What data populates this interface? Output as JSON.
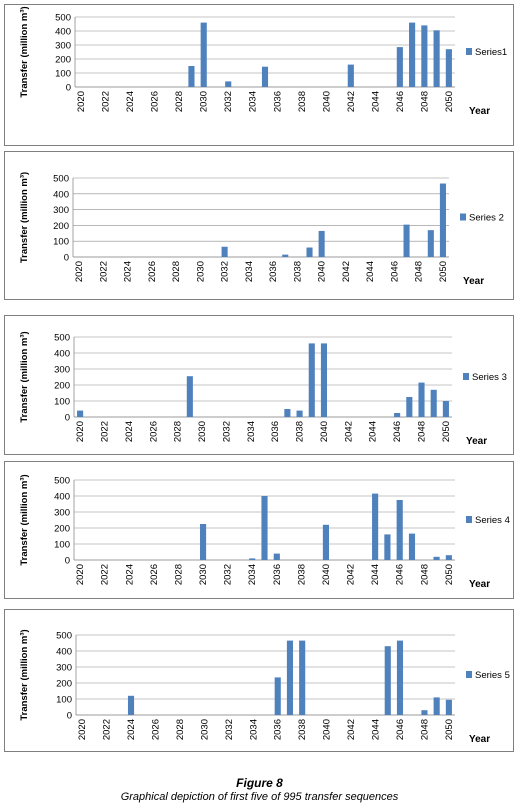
{
  "chart_data": [
    {
      "type": "bar",
      "ylabel": "Transfer (million m³)",
      "xlabel": "Year",
      "ylim": [
        0,
        500
      ],
      "yticks": [
        "0",
        "100",
        "200",
        "300",
        "400",
        "500"
      ],
      "tick_labels": [
        "2020",
        "2022",
        "2024",
        "2026",
        "2028",
        "2030",
        "2032",
        "2034",
        "2036",
        "2038",
        "2040",
        "2042",
        "2044",
        "2046",
        "2048",
        "2050"
      ],
      "legend_position": "right",
      "x": [
        2020,
        2021,
        2022,
        2023,
        2024,
        2025,
        2026,
        2027,
        2028,
        2029,
        2030,
        2031,
        2032,
        2033,
        2034,
        2035,
        2036,
        2037,
        2038,
        2039,
        2040,
        2041,
        2042,
        2043,
        2044,
        2045,
        2046,
        2047,
        2048,
        2049,
        2050
      ],
      "series": [
        {
          "name": "Series1",
          "values": [
            0,
            0,
            0,
            0,
            0,
            0,
            0,
            0,
            0,
            150,
            460,
            0,
            40,
            0,
            0,
            145,
            0,
            0,
            0,
            0,
            0,
            0,
            160,
            0,
            0,
            0,
            285,
            460,
            440,
            405,
            270
          ]
        }
      ],
      "color": "#4f81bd"
    },
    {
      "type": "bar",
      "ylabel": "Transfer (million m³)",
      "xlabel": "Year",
      "ylim": [
        0,
        500
      ],
      "yticks": [
        "0",
        "100",
        "200",
        "300",
        "400",
        "500"
      ],
      "tick_labels": [
        "2020",
        "2022",
        "2024",
        "2026",
        "2028",
        "2030",
        "2032",
        "2034",
        "2036",
        "2038",
        "2040",
        "2042",
        "2044",
        "2046",
        "2048",
        "2050"
      ],
      "legend_position": "right",
      "x": [
        2020,
        2021,
        2022,
        2023,
        2024,
        2025,
        2026,
        2027,
        2028,
        2029,
        2030,
        2031,
        2032,
        2033,
        2034,
        2035,
        2036,
        2037,
        2038,
        2039,
        2040,
        2041,
        2042,
        2043,
        2044,
        2045,
        2046,
        2047,
        2048,
        2049,
        2050
      ],
      "series": [
        {
          "name": "Series 2",
          "values": [
            0,
            0,
            0,
            0,
            0,
            0,
            0,
            0,
            0,
            0,
            0,
            0,
            65,
            0,
            0,
            0,
            0,
            15,
            0,
            60,
            165,
            0,
            0,
            0,
            0,
            0,
            0,
            205,
            0,
            170,
            465
          ]
        }
      ],
      "color": "#4f81bd"
    },
    {
      "type": "bar",
      "ylabel": "Transfer (million m³)",
      "xlabel": "Year",
      "ylim": [
        0,
        500
      ],
      "yticks": [
        "0",
        "100",
        "200",
        "300",
        "400",
        "500"
      ],
      "tick_labels": [
        "2020",
        "2022",
        "2024",
        "2026",
        "2028",
        "2030",
        "2032",
        "2034",
        "2036",
        "2038",
        "2040",
        "2042",
        "2044",
        "2046",
        "2048",
        "2050"
      ],
      "legend_position": "right",
      "x": [
        2020,
        2021,
        2022,
        2023,
        2024,
        2025,
        2026,
        2027,
        2028,
        2029,
        2030,
        2031,
        2032,
        2033,
        2034,
        2035,
        2036,
        2037,
        2038,
        2039,
        2040,
        2041,
        2042,
        2043,
        2044,
        2045,
        2046,
        2047,
        2048,
        2049,
        2050
      ],
      "series": [
        {
          "name": "Series 3",
          "values": [
            40,
            0,
            0,
            0,
            0,
            0,
            0,
            0,
            0,
            255,
            0,
            0,
            0,
            0,
            0,
            0,
            0,
            50,
            40,
            460,
            460,
            0,
            0,
            0,
            0,
            0,
            25,
            125,
            215,
            170,
            100
          ]
        }
      ],
      "color": "#4f81bd"
    },
    {
      "type": "bar",
      "ylabel": "Transfer (million m³)",
      "xlabel": "Year",
      "ylim": [
        0,
        500
      ],
      "yticks": [
        "0",
        "100",
        "200",
        "300",
        "400",
        "500"
      ],
      "tick_labels": [
        "2020",
        "2022",
        "2024",
        "2026",
        "2028",
        "2030",
        "2032",
        "2034",
        "2036",
        "2038",
        "2040",
        "2042",
        "2044",
        "2046",
        "2048",
        "2050"
      ],
      "legend_position": "right",
      "x": [
        2020,
        2021,
        2022,
        2023,
        2024,
        2025,
        2026,
        2027,
        2028,
        2029,
        2030,
        2031,
        2032,
        2033,
        2034,
        2035,
        2036,
        2037,
        2038,
        2039,
        2040,
        2041,
        2042,
        2043,
        2044,
        2045,
        2046,
        2047,
        2048,
        2049,
        2050
      ],
      "series": [
        {
          "name": "Series 4",
          "values": [
            0,
            0,
            0,
            0,
            0,
            0,
            0,
            0,
            0,
            0,
            225,
            0,
            0,
            0,
            10,
            400,
            40,
            0,
            0,
            0,
            220,
            0,
            0,
            0,
            415,
            160,
            375,
            165,
            0,
            20,
            30
          ]
        }
      ],
      "color": "#4f81bd"
    },
    {
      "type": "bar",
      "ylabel": "Transfer (million m³)",
      "xlabel": "Year",
      "ylim": [
        0,
        500
      ],
      "yticks": [
        "0",
        "100",
        "200",
        "300",
        "400",
        "500"
      ],
      "tick_labels": [
        "2020",
        "2022",
        "2024",
        "2026",
        "2028",
        "2030",
        "2032",
        "2034",
        "2036",
        "2038",
        "2040",
        "2042",
        "2044",
        "2046",
        "2048",
        "2050"
      ],
      "legend_position": "right",
      "x": [
        2020,
        2021,
        2022,
        2023,
        2024,
        2025,
        2026,
        2027,
        2028,
        2029,
        2030,
        2031,
        2032,
        2033,
        2034,
        2035,
        2036,
        2037,
        2038,
        2039,
        2040,
        2041,
        2042,
        2043,
        2044,
        2045,
        2046,
        2047,
        2048,
        2049,
        2050
      ],
      "series": [
        {
          "name": "Series 5",
          "values": [
            0,
            0,
            0,
            0,
            120,
            0,
            0,
            0,
            0,
            0,
            0,
            0,
            0,
            0,
            0,
            0,
            235,
            465,
            465,
            0,
            0,
            0,
            0,
            0,
            0,
            430,
            465,
            0,
            30,
            110,
            95
          ]
        }
      ],
      "color": "#4f81bd"
    }
  ],
  "figure": {
    "title": "Figure 8",
    "subtitle": "Graphical depiction of first five of 995 transfer sequences"
  }
}
